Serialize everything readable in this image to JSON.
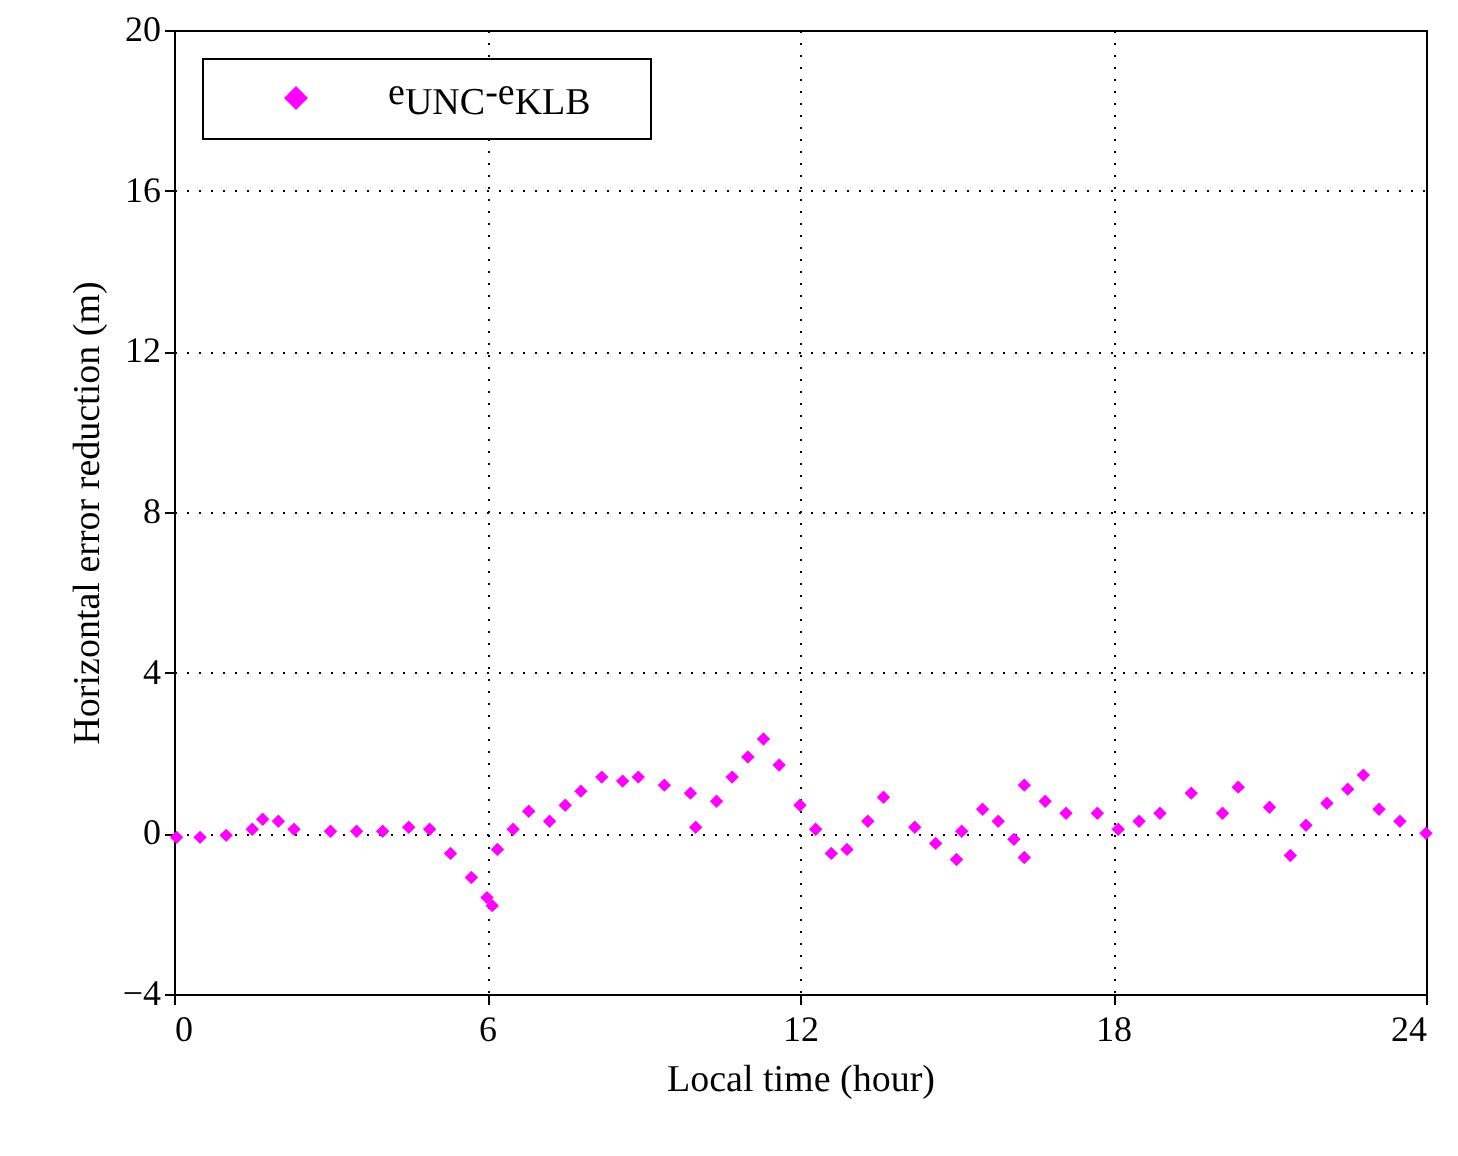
{
  "chart_data": {
    "type": "scatter",
    "xlabel": "Local time (hour)",
    "ylabel": "Horizontal error reduction (m)",
    "x": [
      0.05,
      0.5,
      1.0,
      1.5,
      1.7,
      2.0,
      2.3,
      3.0,
      3.5,
      4.0,
      4.5,
      4.9,
      5.3,
      5.7,
      6.0,
      6.1,
      6.2,
      6.5,
      6.8,
      7.2,
      7.5,
      7.8,
      8.2,
      8.6,
      8.9,
      9.4,
      9.9,
      10.0,
      10.4,
      10.7,
      11.0,
      11.3,
      11.6,
      12.0,
      12.3,
      12.6,
      12.9,
      13.3,
      13.6,
      14.2,
      14.6,
      15.0,
      15.1,
      15.5,
      15.8,
      16.1,
      16.3,
      16.3,
      16.7,
      17.1,
      17.7,
      18.1,
      18.5,
      18.9,
      19.5,
      20.1,
      20.4,
      21.0,
      21.4,
      21.7,
      22.1,
      22.5,
      22.8,
      23.1,
      23.5,
      24.0
    ],
    "series": [
      {
        "name": "e$_{UNC}$-e$_{KLB}$",
        "color": "#ff00ff",
        "values": [
          -0.1,
          -0.1,
          -0.05,
          0.1,
          0.35,
          0.3,
          0.1,
          0.05,
          0.05,
          0.05,
          0.15,
          0.1,
          -0.5,
          -1.1,
          -1.6,
          -1.8,
          -0.4,
          0.1,
          0.55,
          0.3,
          0.7,
          1.05,
          1.4,
          1.3,
          1.4,
          1.2,
          1.0,
          0.15,
          0.8,
          1.4,
          1.9,
          2.35,
          1.7,
          0.7,
          0.1,
          -0.5,
          -0.4,
          0.3,
          0.9,
          0.15,
          -0.25,
          -0.65,
          0.05,
          0.6,
          0.3,
          -0.15,
          -0.6,
          1.2,
          0.8,
          0.5,
          0.5,
          0.1,
          0.3,
          0.5,
          1.0,
          0.5,
          1.15,
          0.65,
          -0.55,
          0.2,
          0.75,
          1.1,
          1.45,
          0.6,
          0.3,
          0.0
        ]
      }
    ],
    "xlim": [
      0,
      24
    ],
    "xticks": [
      0,
      6,
      12,
      18,
      24
    ],
    "ylim": [
      -4,
      20
    ],
    "yticks": [
      -4,
      0,
      4,
      8,
      12,
      16,
      20
    ],
    "grid": true,
    "legend": "top left",
    "marker": "diamond"
  }
}
